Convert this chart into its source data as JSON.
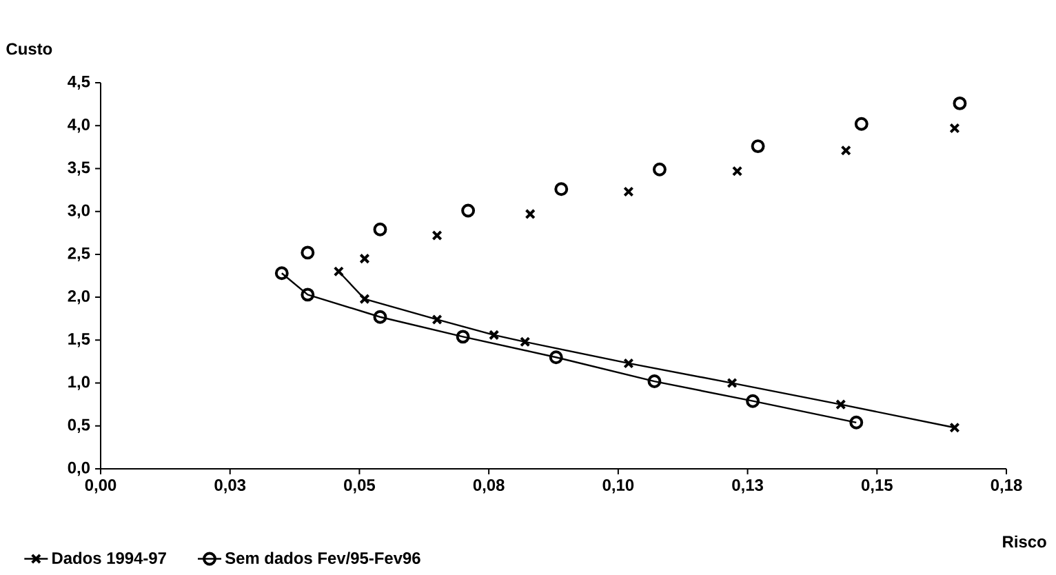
{
  "chart_data": {
    "type": "line",
    "xlabel": "Risco",
    "ylabel": "Custo",
    "xlim": [
      0,
      0.175
    ],
    "ylim": [
      0,
      4.5
    ],
    "xticks": [
      {
        "value": 0,
        "label": "0,00"
      },
      {
        "value": 0.025,
        "label": "0,03"
      },
      {
        "value": 0.05,
        "label": "0,05"
      },
      {
        "value": 0.075,
        "label": "0,08"
      },
      {
        "value": 0.1,
        "label": "0,10"
      },
      {
        "value": 0.125,
        "label": "0,13"
      },
      {
        "value": 0.15,
        "label": "0,15"
      },
      {
        "value": 0.175,
        "label": "0,18"
      }
    ],
    "yticks": [
      {
        "value": 0,
        "label": "0,0"
      },
      {
        "value": 0.5,
        "label": "0,5"
      },
      {
        "value": 1,
        "label": "1,0"
      },
      {
        "value": 1.5,
        "label": "1,5"
      },
      {
        "value": 2,
        "label": "2,0"
      },
      {
        "value": 2.5,
        "label": "2,5"
      },
      {
        "value": 3,
        "label": "3,0"
      },
      {
        "value": 3.5,
        "label": "3,5"
      },
      {
        "value": 4,
        "label": "4,0"
      },
      {
        "value": 4.5,
        "label": "4,5"
      }
    ],
    "grid": false,
    "legend": "bottom left",
    "series": [
      {
        "name": "Dados 1994-97",
        "marker": "cross",
        "color": "#000000",
        "x": [
          0.046,
          0.051,
          0.065,
          0.076,
          0.082,
          0.102,
          0.122,
          0.143,
          0.165
        ],
        "values": [
          2.3,
          1.98,
          1.74,
          1.56,
          1.48,
          1.23,
          1.0,
          0.75,
          0.48
        ]
      },
      {
        "name": "Sem dados Fev/95-Fev96",
        "marker": "circle",
        "color": "#000000",
        "x": [
          0.035,
          0.04,
          0.054,
          0.07,
          0.088,
          0.107,
          0.126,
          0.146
        ],
        "values": [
          2.28,
          2.03,
          1.77,
          1.54,
          1.3,
          1.02,
          0.79,
          0.54
        ]
      },
      {
        "type": "scatter",
        "marker": "cross",
        "color": "#000000",
        "x": [
          0.051,
          0.065,
          0.083,
          0.102,
          0.123,
          0.144,
          0.165
        ],
        "values": [
          2.45,
          2.72,
          2.97,
          3.23,
          3.47,
          3.71,
          3.97
        ]
      },
      {
        "type": "scatter",
        "marker": "circle",
        "color": "#000000",
        "x": [
          0.04,
          0.054,
          0.071,
          0.089,
          0.108,
          0.127,
          0.147,
          0.166
        ],
        "values": [
          2.52,
          2.79,
          3.01,
          3.26,
          3.49,
          3.76,
          4.02,
          4.26
        ]
      }
    ]
  }
}
